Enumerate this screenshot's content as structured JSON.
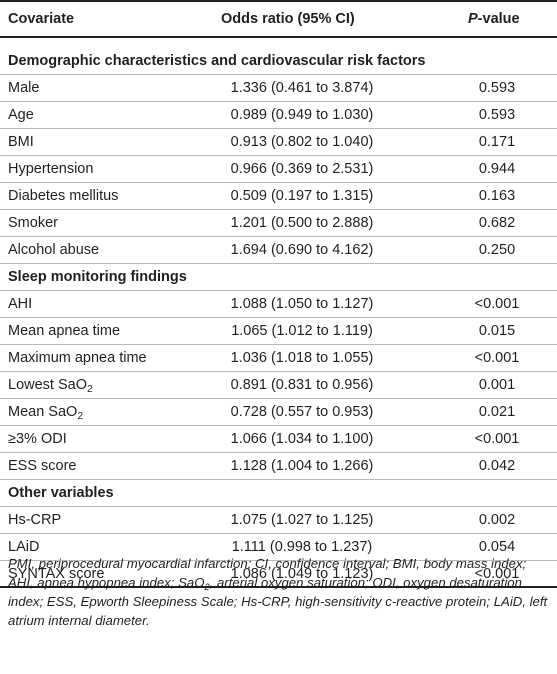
{
  "header": {
    "covariate": "Covariate",
    "odds_ratio": "Odds ratio (95% CI)",
    "p_italic": "P",
    "p_rest": "-value"
  },
  "sections": [
    {
      "title": "Demographic characteristics and cardiovascular risk factors",
      "rows": [
        {
          "name": "Male",
          "sub": "",
          "or": "1.336 (0.461 to 3.874)",
          "p": "0.593"
        },
        {
          "name": "Age",
          "sub": "",
          "or": "0.989 (0.949 to 1.030)",
          "p": "0.593"
        },
        {
          "name": "BMI",
          "sub": "",
          "or": "0.913 (0.802 to 1.040)",
          "p": "0.171"
        },
        {
          "name": "Hypertension",
          "sub": "",
          "or": "0.966 (0.369 to 2.531)",
          "p": "0.944"
        },
        {
          "name": "Diabetes mellitus",
          "sub": "",
          "or": "0.509 (0.197 to 1.315)",
          "p": "0.163"
        },
        {
          "name": "Smoker",
          "sub": "",
          "or": "1.201 (0.500 to 2.888)",
          "p": "0.682"
        },
        {
          "name": "Alcohol abuse",
          "sub": "",
          "or": "1.694 (0.690 to 4.162)",
          "p": "0.250"
        }
      ]
    },
    {
      "title": "Sleep monitoring findings",
      "rows": [
        {
          "name": "AHI",
          "sub": "",
          "or": "1.088 (1.050 to 1.127)",
          "p": "<0.001"
        },
        {
          "name": "Mean apnea time",
          "sub": "",
          "or": "1.065 (1.012 to 1.119)",
          "p": "0.015"
        },
        {
          "name": "Maximum apnea time",
          "sub": "",
          "or": "1.036 (1.018 to 1.055)",
          "p": "<0.001"
        },
        {
          "name": "Lowest SaO",
          "sub": "2",
          "or": "0.891 (0.831 to 0.956)",
          "p": "0.001"
        },
        {
          "name": "Mean SaO",
          "sub": "2",
          "or": "0.728 (0.557 to 0.953)",
          "p": "0.021"
        },
        {
          "name": "≥3% ODI",
          "sub": "",
          "or": "1.066 (1.034 to 1.100)",
          "p": "<0.001"
        },
        {
          "name": "ESS score",
          "sub": "",
          "or": "1.128 (1.004 to 1.266)",
          "p": "0.042"
        }
      ]
    },
    {
      "title": "Other variables",
      "rows": [
        {
          "name": "Hs-CRP",
          "sub": "",
          "or": "1.075 (1.027 to 1.125)",
          "p": "0.002"
        },
        {
          "name": "LAiD",
          "sub": "",
          "or": "1.111 (0.998 to 1.237)",
          "p": "0.054"
        },
        {
          "name": "SYNTAX score",
          "sub": "",
          "or": "1.086 (1.049 to 1.123)",
          "p": "<0.001"
        }
      ]
    }
  ],
  "footnote": {
    "part1": "PMI, periprocedural myocardial infarction; CI, confidence interval; BMI, body mass index; AHI, apnea hypopnea index; SaO",
    "sub": "2",
    "part2": ", arterial oxygen saturation; ODI, oxygen desaturation index; ESS, Epworth Sleepiness Scale; Hs-CRP, high-sensitivity c-reactive protein; LAiD, left atrium internal diameter."
  }
}
